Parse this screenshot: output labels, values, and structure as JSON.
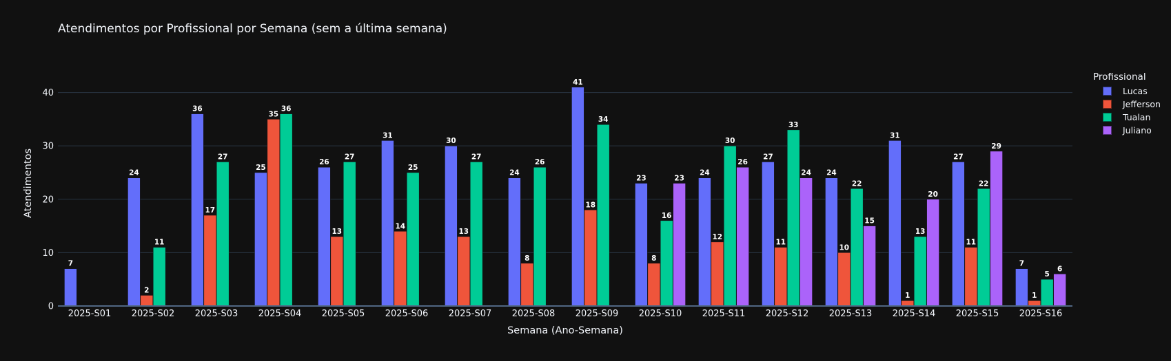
{
  "chart_data": {
    "type": "bar",
    "title": "Atendimentos por Profissional por Semana (sem a última semana)",
    "xlabel": "Semana (Ano-Semana)",
    "ylabel": "Atendimentos",
    "legend_title": "Profissional",
    "legend_position": "top-right",
    "ylim": [
      0,
      46
    ],
    "yticks": [
      0,
      10,
      20,
      30,
      40
    ],
    "grid": true,
    "categories": [
      "2025-S01",
      "2025-S02",
      "2025-S03",
      "2025-S04",
      "2025-S05",
      "2025-S06",
      "2025-S07",
      "2025-S08",
      "2025-S09",
      "2025-S10",
      "2025-S11",
      "2025-S12",
      "2025-S13",
      "2025-S14",
      "2025-S15",
      "2025-S16"
    ],
    "series": [
      {
        "name": "Lucas",
        "color": "#636efa",
        "values": [
          7,
          24,
          36,
          25,
          26,
          31,
          30,
          24,
          41,
          23,
          24,
          27,
          24,
          31,
          27,
          7
        ]
      },
      {
        "name": "Jefferson",
        "color": "#ef553b",
        "values": [
          null,
          2,
          17,
          35,
          13,
          14,
          13,
          8,
          18,
          8,
          12,
          11,
          10,
          1,
          11,
          1
        ]
      },
      {
        "name": "Tualan",
        "color": "#00cc96",
        "values": [
          null,
          11,
          27,
          36,
          27,
          25,
          27,
          26,
          34,
          16,
          30,
          33,
          22,
          13,
          22,
          5
        ]
      },
      {
        "name": "Juliano",
        "color": "#ab63fa",
        "values": [
          null,
          null,
          null,
          null,
          null,
          null,
          null,
          null,
          null,
          23,
          26,
          24,
          15,
          20,
          29,
          6
        ]
      }
    ]
  }
}
